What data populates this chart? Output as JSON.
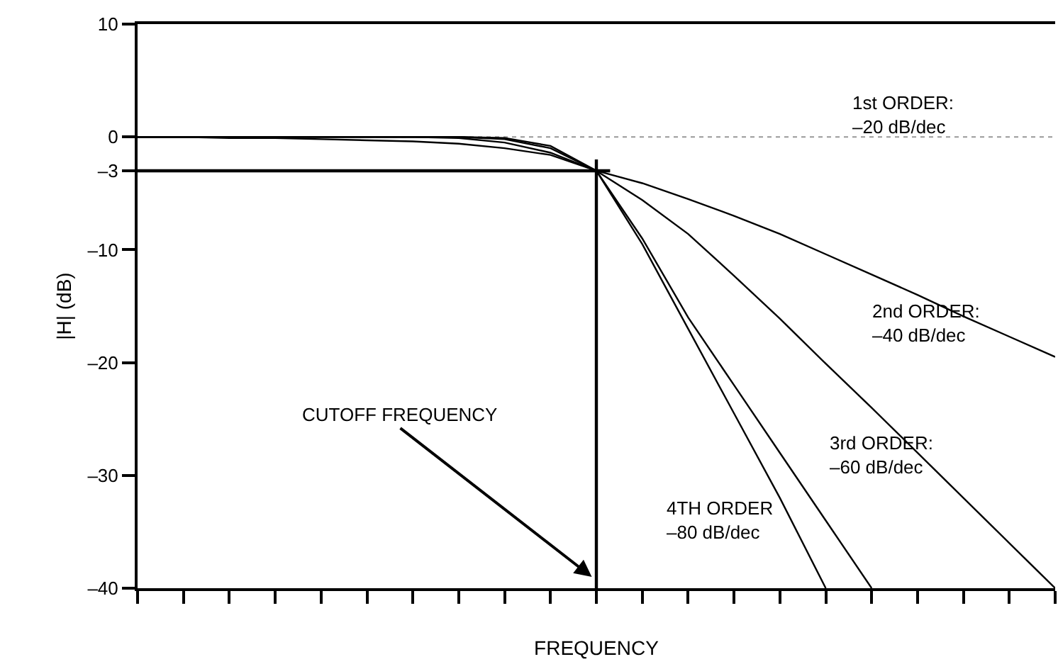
{
  "chart_data": {
    "type": "line",
    "xlabel": "FREQUENCY",
    "ylabel": "|H| (dB)",
    "categories": [
      null,
      null,
      null,
      null,
      null,
      null,
      null,
      null,
      null,
      null,
      null,
      null,
      null,
      null,
      null,
      null,
      null,
      null,
      null,
      null,
      null
    ],
    "series": [
      {
        "color": "#000000",
        "values": [
          0,
          0,
          -0.1,
          -0.1,
          -0.2,
          -0.3,
          -0.4,
          -0.6,
          -1.0,
          -1.6,
          -3,
          -4.1,
          -5.5,
          -7,
          -8.6,
          -10.4,
          -12.2,
          -14,
          -15.9,
          -17.7,
          -19.5
        ]
      },
      {
        "color": "#000000",
        "values": [
          0,
          0,
          0,
          0,
          0,
          0,
          0,
          -0.1,
          -0.5,
          -1.4,
          -3,
          -5.6,
          -8.6,
          -12.3,
          -16.1,
          -20.1,
          -24,
          -28,
          -32,
          -36,
          -40
        ]
      },
      {
        "color": "#000000",
        "values": [
          0,
          0,
          0,
          0,
          0,
          0,
          0,
          0,
          -0.2,
          -1.0,
          -3,
          -9,
          -16,
          -22,
          -28,
          -34,
          -40,
          null,
          null,
          null,
          null
        ]
      },
      {
        "color": "#000000",
        "values": [
          0,
          0,
          0,
          0,
          0,
          0,
          0,
          0,
          -0.1,
          -0.8,
          -3,
          -9.5,
          -17,
          -24.5,
          -32,
          -40,
          null,
          null,
          null,
          null,
          null
        ]
      }
    ],
    "ylim": [
      -40,
      10
    ],
    "yticks": [
      10,
      0,
      {
        "value": -3,
        "label": "–3"
      },
      {
        "value": -10,
        "label": "–10"
      },
      {
        "value": -20,
        "label": "–20"
      },
      {
        "value": -30,
        "label": "–30"
      },
      {
        "value": -40,
        "label": "–40"
      }
    ],
    "ref_lines": [
      {
        "axis": "y",
        "value": -3,
        "color": "#000000"
      },
      {
        "axis": "y",
        "value": 0,
        "color": "#999999",
        "line_style": "dotted"
      }
    ],
    "annotations": [
      "1st ORDER:\n–20 dB/dec",
      "2nd ORDER:\n–40 dB/dec",
      "3rd ORDER:\n–60 dB/dec",
      "4TH ORDER\n–80 dB/dec",
      "CUTOFF FREQUENCY"
    ],
    "grid": false,
    "marker": "none",
    "line_style": "solid"
  }
}
